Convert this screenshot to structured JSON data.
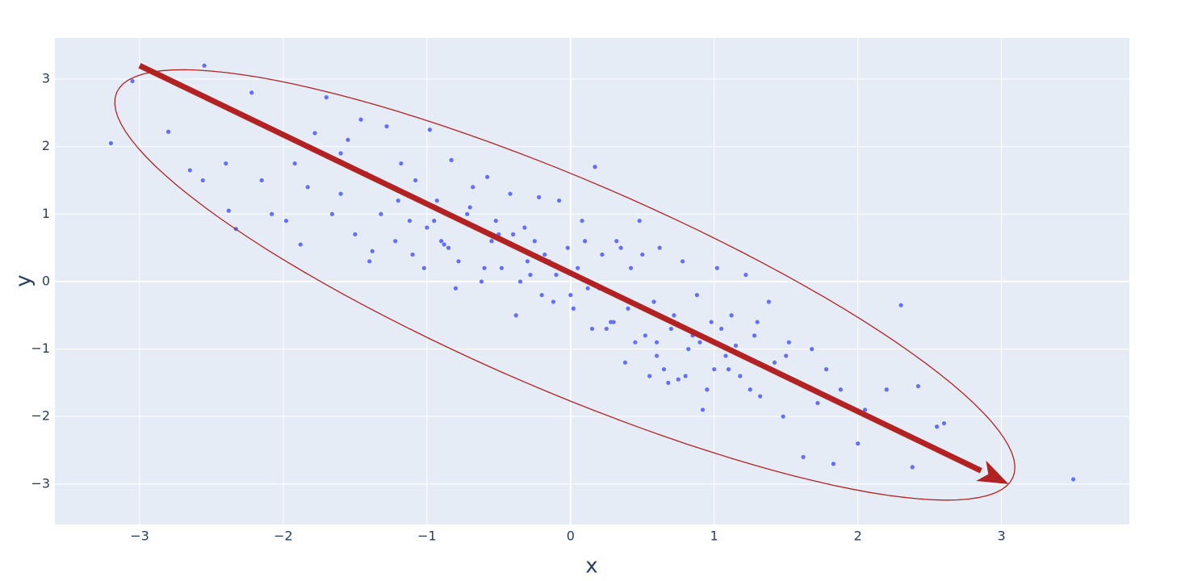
{
  "chart_data": {
    "type": "scatter",
    "x_label": "x",
    "y_label": "y",
    "color": "#636efa",
    "x": [
      -3.2,
      -3.05,
      -2.8,
      -2.55,
      -2.65,
      -2.56,
      -2.4,
      -2.38,
      -2.33,
      -2.22,
      -2.15,
      -2.08,
      -2.02,
      -1.98,
      -1.92,
      -1.88,
      -1.83,
      -1.78,
      -1.7,
      -1.66,
      -1.6,
      -1.55,
      -1.5,
      -1.46,
      -1.42,
      -1.38,
      -1.32,
      -1.28,
      -1.22,
      -1.18,
      -1.12,
      -1.08,
      -1.02,
      -0.98,
      -0.93,
      -0.88,
      -0.83,
      -0.78,
      -0.72,
      -0.68,
      -0.62,
      -0.58,
      -0.52,
      -0.48,
      -0.42,
      -0.38,
      -0.32,
      -0.28,
      -0.22,
      -0.18,
      -0.12,
      -0.08,
      -0.02,
      0.02,
      0.08,
      0.12,
      0.17,
      0.22,
      0.28,
      0.32,
      0.38,
      0.42,
      0.48,
      0.52,
      0.58,
      0.62,
      0.68,
      0.72,
      0.78,
      0.82,
      0.88,
      0.92,
      0.98,
      1.02,
      1.08,
      1.12,
      1.18,
      1.22,
      1.28,
      1.32,
      1.38,
      1.42,
      1.48,
      1.52,
      1.58,
      1.62,
      1.68,
      1.72,
      1.78,
      1.83,
      1.88,
      2.0,
      2.05,
      2.2,
      2.3,
      2.38,
      2.42,
      2.55,
      2.6,
      3.5,
      -1.4,
      -1.2,
      -1.0,
      -0.9,
      -0.8,
      -0.6,
      -0.5,
      -0.3,
      -0.1,
      0.0,
      0.1,
      0.3,
      0.4,
      0.5,
      0.6,
      0.7,
      0.9,
      1.1,
      1.3,
      1.5,
      -1.1,
      -0.7,
      -0.4,
      -0.2,
      0.2,
      0.45,
      0.65,
      0.85,
      1.05,
      1.25,
      -0.95,
      -0.55,
      -0.15,
      0.15,
      0.55,
      0.75,
      0.95,
      -0.25,
      0.35,
      1.15,
      -1.6,
      -0.85,
      -0.35,
      0.05,
      0.25,
      0.6,
      0.8,
      1.0
    ],
    "y": [
      2.05,
      2.97,
      2.22,
      3.2,
      1.65,
      1.5,
      1.75,
      1.05,
      0.78,
      2.8,
      1.5,
      1.0,
      2.2,
      0.9,
      1.75,
      0.55,
      1.4,
      2.2,
      2.73,
      1.0,
      1.3,
      2.1,
      0.7,
      2.4,
      1.6,
      0.45,
      1.0,
      2.3,
      0.6,
      1.75,
      0.9,
      1.5,
      0.2,
      2.25,
      1.2,
      0.55,
      1.8,
      0.3,
      1.0,
      1.4,
      0.0,
      1.55,
      0.9,
      0.2,
      1.3,
      -0.5,
      0.8,
      0.1,
      1.25,
      0.4,
      -0.3,
      1.2,
      0.5,
      -0.4,
      0.9,
      -0.1,
      1.7,
      0.4,
      -0.6,
      0.6,
      -1.2,
      0.2,
      0.9,
      -0.8,
      -0.3,
      0.5,
      -1.5,
      -0.5,
      0.3,
      -1.0,
      -0.2,
      -1.9,
      -0.6,
      0.2,
      -1.1,
      -0.5,
      -1.4,
      0.1,
      -0.8,
      -1.7,
      -0.3,
      -1.2,
      -2.0,
      -0.9,
      -1.5,
      -2.6,
      -1.0,
      -1.8,
      -1.3,
      -2.7,
      -1.6,
      -2.4,
      -1.9,
      -1.6,
      -0.35,
      -2.75,
      -1.55,
      -2.15,
      -2.1,
      -2.93,
      0.3,
      1.2,
      0.8,
      0.6,
      -0.1,
      0.2,
      0.7,
      0.3,
      0.1,
      -0.2,
      0.6,
      -0.6,
      -0.4,
      0.4,
      -1.1,
      -0.7,
      -0.9,
      -1.3,
      -0.6,
      -1.1,
      0.4,
      1.1,
      0.7,
      -0.2,
      -0.1,
      -0.9,
      -1.3,
      -0.8,
      -0.7,
      -1.6,
      0.9,
      0.6,
      0.3,
      -0.7,
      -1.4,
      -1.45,
      -1.6,
      0.6,
      0.5,
      -0.95,
      1.9,
      0.5,
      0.0,
      0.2,
      -0.7,
      -0.9,
      -1.4,
      -1.3
    ],
    "xlim": [
      -3.59,
      3.89
    ],
    "ylim": [
      -3.6,
      3.61
    ],
    "xticks": [
      {
        "value": -3,
        "label": "−3"
      },
      {
        "value": -2,
        "label": "−2"
      },
      {
        "value": -1,
        "label": "−1"
      },
      0,
      1,
      2,
      3
    ],
    "yticks": [
      {
        "value": -3,
        "label": "−3"
      },
      {
        "value": -2,
        "label": "−2"
      },
      {
        "value": -1,
        "label": "−1"
      },
      0,
      1,
      2,
      3
    ],
    "grid": true,
    "arrow": {
      "x0": -3,
      "y0": 3.2,
      "x1": 3.05,
      "y1": -3.0,
      "color": "#b22222"
    },
    "ellipse": {
      "center": [
        -0.04,
        -0.05
      ],
      "major": [
        3.12,
        -2.85
      ],
      "minor": [
        -0.29,
        -1.43
      ],
      "color": "#b22222"
    }
  }
}
